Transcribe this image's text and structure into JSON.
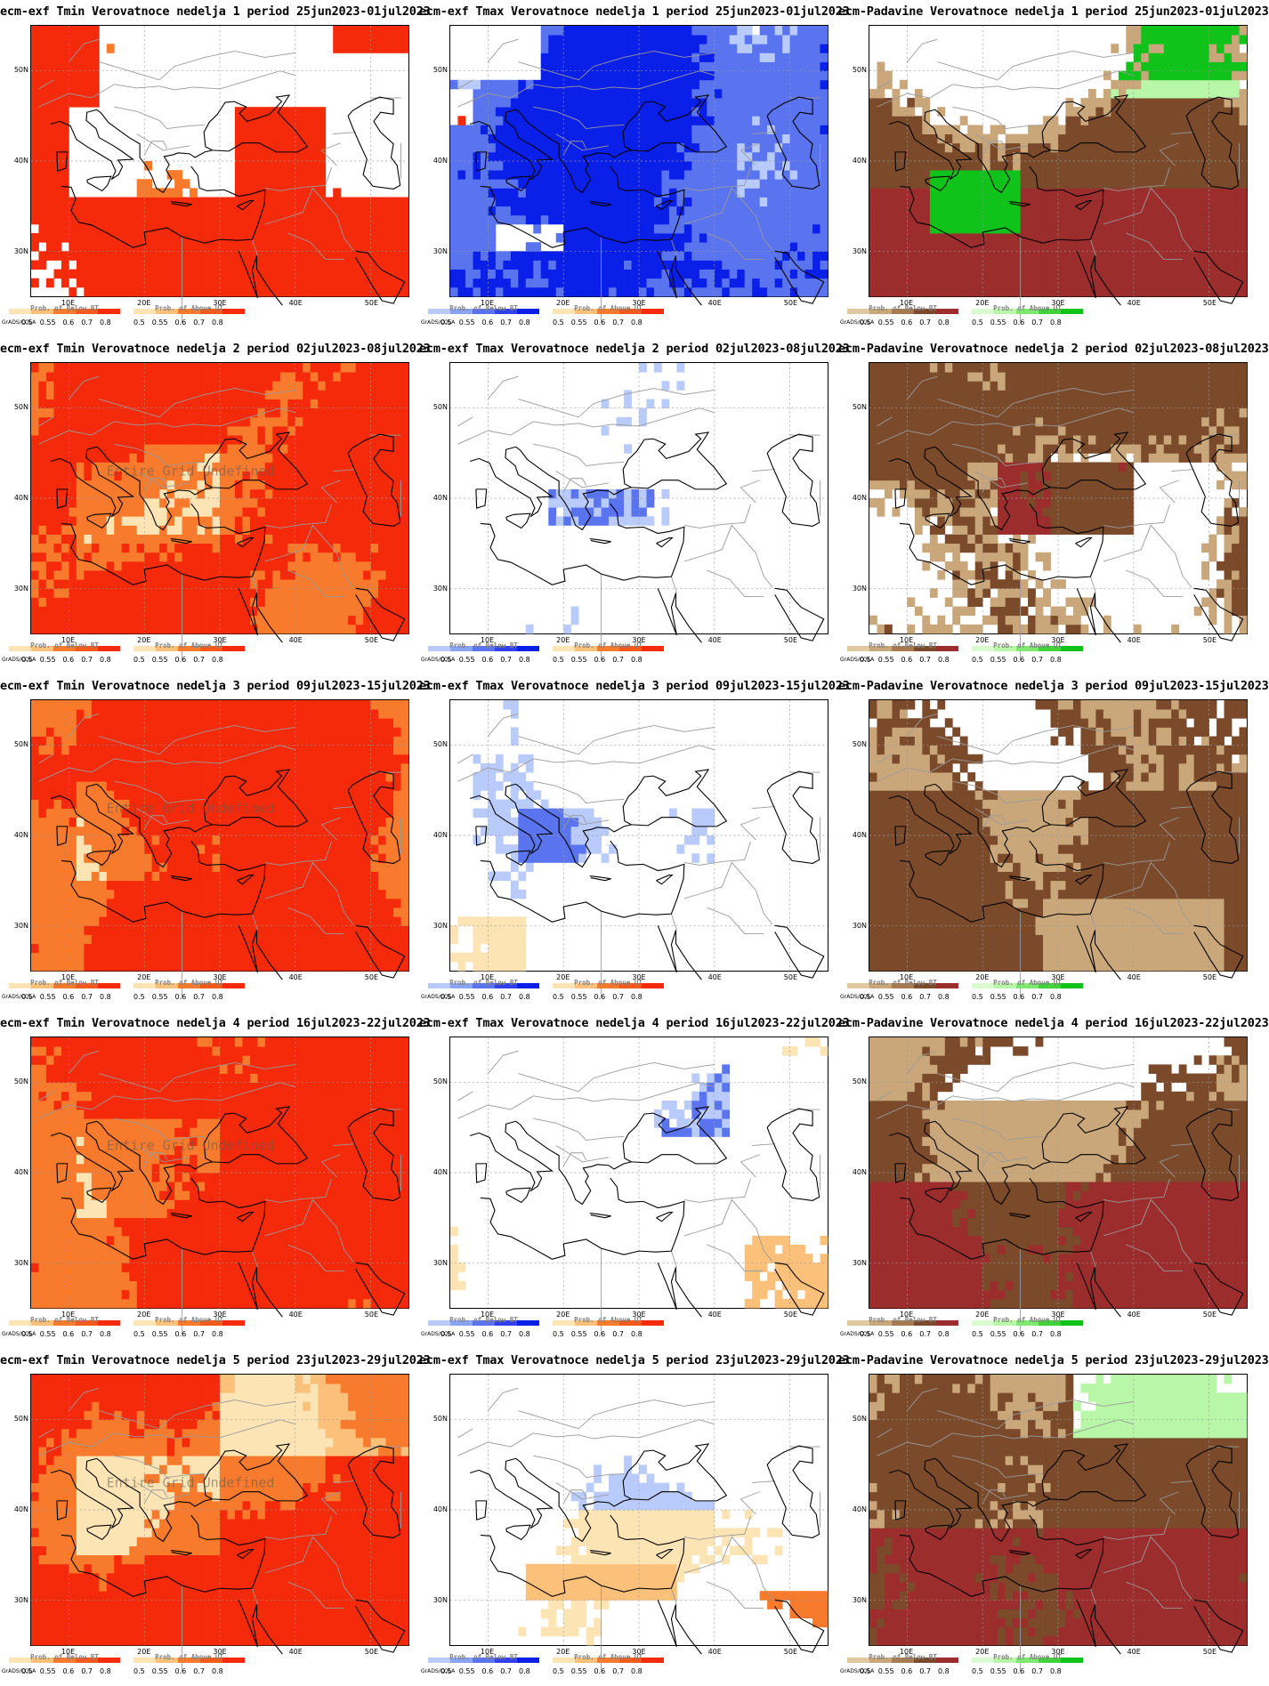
{
  "layout_note": "",
  "legend_ticks": [
    "0.5",
    "0.55",
    "0.6",
    "0.7",
    "0.8"
  ],
  "grads_label": "GrADS/COLA",
  "lat_labels": [
    "50N",
    "40N",
    "30N"
  ],
  "lon_labels": [
    "10E",
    "20E",
    "30E",
    "40E",
    "50E"
  ],
  "watermark": "Entire Grid Undefined",
  "legend_titles": {
    "below": "Prob. of Below BT",
    "above": "Prob. of Above UT"
  },
  "colors": {
    "tmin_hot": "#f52a0a",
    "tmin_warm": "#f87a2c",
    "tmin_mild": "#fbc07a",
    "tmin_light": "#fde4b4",
    "tmax_cold": "#0a1fe8",
    "tmax_mid": "#5a74f0",
    "tmax_light": "#b9cbfa",
    "prec_dry": "#9c2d2d",
    "prec_brown": "#7a4a2a",
    "prec_tan": "#c9a77a",
    "prec_wet": "#0fc31a",
    "prec_lightwet": "#b8f7a8",
    "coast": "#000000",
    "border": "#9a9a9a"
  },
  "panels": [
    {
      "title": "ecm-exf Tmin Verovatnoce nedelja 1 period 25jun2023-01jul2023",
      "kind": "tmin",
      "scheme": "w1_tmin"
    },
    {
      "title": "ecm-exf Tmax Verovatnoce nedelja 1 period 25jun2023-01jul2023",
      "kind": "tmax",
      "scheme": "w1_tmax"
    },
    {
      "title": "ecm-Padavine Verovatnoce nedelja 1 period 25jun2023-01jul2023",
      "kind": "prec",
      "scheme": "w1_prec"
    },
    {
      "title": "ecm-exf Tmin Verovatnoce nedelja 2 period 02jul2023-08jul2023",
      "kind": "tmin",
      "scheme": "w2_tmin",
      "watermark": true
    },
    {
      "title": "ecm-exf Tmax Verovatnoce nedelja 2 period 02jul2023-08jul2023",
      "kind": "tmax",
      "scheme": "w2_tmax"
    },
    {
      "title": "ecm-Padavine Verovatnoce nedelja 2 period 02jul2023-08jul2023",
      "kind": "prec",
      "scheme": "w2_prec"
    },
    {
      "title": "ecm-exf Tmin Verovatnoce nedelja 3 period 09jul2023-15jul2023",
      "kind": "tmin",
      "scheme": "w3_tmin",
      "watermark": true
    },
    {
      "title": "ecm-exf Tmax Verovatnoce nedelja 3 period 09jul2023-15jul2023",
      "kind": "tmax",
      "scheme": "w3_tmax"
    },
    {
      "title": "ecm-Padavine Verovatnoce nedelja 3 period 09jul2023-15jul2023",
      "kind": "prec",
      "scheme": "w3_prec"
    },
    {
      "title": "ecm-exf Tmin Verovatnoce nedelja 4 period 16jul2023-22jul2023",
      "kind": "tmin",
      "scheme": "w4_tmin",
      "watermark": true
    },
    {
      "title": "ecm-exf Tmax Verovatnoce nedelja 4 period 16jul2023-22jul2023",
      "kind": "tmax",
      "scheme": "w4_tmax"
    },
    {
      "title": "ecm-Padavine Verovatnoce nedelja 4 period 16jul2023-22jul2023",
      "kind": "prec",
      "scheme": "w4_prec"
    },
    {
      "title": "ecm-exf Tmin Verovatnoce nedelja 5 period 23jul2023-29jul2023",
      "kind": "tmin",
      "scheme": "w5_tmin",
      "watermark": true
    },
    {
      "title": "ecm-exf Tmax Verovatnoce nedelja 5 period 23jul2023-29jul2023",
      "kind": "tmax",
      "scheme": "w5_tmax"
    },
    {
      "title": "ecm-Padavine Verovatnoce nedelja 5 period 23jul2023-29jul2023",
      "kind": "prec",
      "scheme": "w5_prec"
    }
  ]
}
